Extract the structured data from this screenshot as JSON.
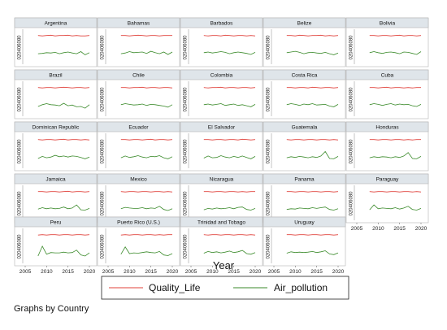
{
  "chart_data": {
    "type": "line",
    "layout": "small-multiples",
    "xlabel": "Year",
    "xlim": [
      2005,
      2020
    ],
    "xticks": [
      "2005",
      "2010",
      "2015",
      "2020"
    ],
    "ylim": [
      0,
      100
    ],
    "yticks": [
      "0",
      "20",
      "40",
      "60",
      "80"
    ],
    "years": [
      2008,
      2009,
      2010,
      2011,
      2012,
      2013,
      2014,
      2015,
      2016,
      2017,
      2018,
      2019,
      2020
    ],
    "legend": {
      "position": "bottom",
      "items": [
        {
          "label": "Quality_Life",
          "color": "#e0403a"
        },
        {
          "label": "Air_pollution",
          "color": "#3a8a2a"
        }
      ]
    },
    "note": "Graphs by Country",
    "panels": [
      {
        "country": "Argentina",
        "Quality_Life": [
          82,
          81,
          82,
          83,
          81,
          82,
          82,
          83,
          81,
          82,
          81,
          81,
          82
        ],
        "Air_pollution": [
          30,
          31,
          33,
          32,
          34,
          30,
          33,
          35,
          32,
          30,
          36,
          27,
          33
        ]
      },
      {
        "country": "Bahamas",
        "Quality_Life": [
          82,
          82,
          81,
          82,
          83,
          82,
          81,
          82,
          82,
          81,
          82,
          82,
          82
        ],
        "Air_pollution": [
          30,
          32,
          36,
          33,
          34,
          35,
          31,
          37,
          33,
          30,
          35,
          28,
          35
        ]
      },
      {
        "country": "Barbados",
        "Quality_Life": [
          82,
          81,
          82,
          82,
          81,
          83,
          82,
          81,
          82,
          82,
          81,
          82,
          81
        ],
        "Air_pollution": [
          33,
          35,
          32,
          34,
          36,
          34,
          30,
          33,
          35,
          33,
          31,
          28,
          34
        ]
      },
      {
        "country": "Belize",
        "Quality_Life": [
          82,
          82,
          81,
          83,
          82,
          81,
          82,
          82,
          83,
          81,
          82,
          81,
          82
        ],
        "Air_pollution": [
          33,
          35,
          37,
          34,
          30,
          33,
          34,
          32,
          31,
          34,
          30,
          27,
          32
        ]
      },
      {
        "country": "Bolivia",
        "Quality_Life": [
          82,
          82,
          81,
          82,
          82,
          81,
          82,
          83,
          81,
          82,
          82,
          81,
          82
        ],
        "Air_pollution": [
          33,
          36,
          33,
          31,
          34,
          35,
          33,
          30,
          35,
          34,
          31,
          28,
          36
        ]
      },
      {
        "country": "Brazil",
        "Quality_Life": [
          82,
          81,
          82,
          82,
          81,
          82,
          83,
          82,
          81,
          82,
          82,
          81,
          82
        ],
        "Air_pollution": [
          28,
          33,
          36,
          33,
          32,
          30,
          37,
          30,
          32,
          27,
          28,
          23,
          33
        ]
      },
      {
        "country": "Chile",
        "Quality_Life": [
          82,
          82,
          81,
          82,
          82,
          83,
          81,
          82,
          82,
          81,
          82,
          82,
          81
        ],
        "Air_pollution": [
          33,
          36,
          34,
          32,
          33,
          35,
          31,
          34,
          33,
          31,
          29,
          26,
          33
        ]
      },
      {
        "country": "Colombia",
        "Quality_Life": [
          82,
          81,
          82,
          82,
          83,
          81,
          82,
          82,
          81,
          82,
          82,
          81,
          82
        ],
        "Air_pollution": [
          33,
          35,
          32,
          34,
          36,
          31,
          33,
          35,
          31,
          33,
          30,
          27,
          34
        ]
      },
      {
        "country": "Costa Rica",
        "Quality_Life": [
          82,
          82,
          81,
          82,
          82,
          81,
          83,
          82,
          81,
          82,
          82,
          81,
          82
        ],
        "Air_pollution": [
          33,
          36,
          34,
          31,
          35,
          33,
          36,
          32,
          33,
          34,
          29,
          27,
          34
        ]
      },
      {
        "country": "Cuba",
        "Quality_Life": [
          82,
          82,
          81,
          82,
          83,
          81,
          82,
          82,
          81,
          82,
          81,
          82,
          82
        ],
        "Air_pollution": [
          33,
          36,
          34,
          31,
          34,
          36,
          32,
          35,
          33,
          34,
          30,
          28,
          34
        ]
      },
      {
        "country": "Dominican Republic",
        "Quality_Life": [
          82,
          81,
          82,
          82,
          81,
          82,
          83,
          81,
          82,
          82,
          81,
          82,
          81
        ],
        "Air_pollution": [
          28,
          34,
          30,
          32,
          37,
          33,
          35,
          32,
          35,
          34,
          31,
          27,
          32
        ]
      },
      {
        "country": "Ecuador",
        "Quality_Life": [
          82,
          82,
          81,
          82,
          82,
          81,
          82,
          83,
          81,
          82,
          82,
          81,
          82
        ],
        "Air_pollution": [
          30,
          35,
          31,
          33,
          36,
          32,
          30,
          34,
          33,
          36,
          30,
          27,
          33
        ]
      },
      {
        "country": "El Salvador",
        "Quality_Life": [
          82,
          82,
          81,
          82,
          82,
          81,
          82,
          82,
          81,
          83,
          82,
          81,
          82
        ],
        "Air_pollution": [
          29,
          35,
          30,
          31,
          36,
          32,
          30,
          34,
          31,
          35,
          31,
          27,
          34
        ]
      },
      {
        "country": "Guatemala",
        "Quality_Life": [
          82,
          81,
          82,
          82,
          81,
          82,
          82,
          81,
          82,
          82,
          81,
          82,
          81
        ],
        "Air_pollution": [
          30,
          33,
          31,
          34,
          32,
          30,
          33,
          31,
          35,
          48,
          28,
          27,
          34
        ]
      },
      {
        "country": "Honduras",
        "Quality_Life": [
          82,
          82,
          81,
          82,
          82,
          81,
          82,
          82,
          81,
          82,
          81,
          82,
          82
        ],
        "Air_pollution": [
          30,
          33,
          31,
          33,
          32,
          30,
          33,
          31,
          35,
          45,
          28,
          27,
          34
        ]
      },
      {
        "country": "Jamaica",
        "Quality_Life": [
          82,
          82,
          81,
          82,
          82,
          81,
          82,
          83,
          81,
          82,
          82,
          81,
          82
        ],
        "Air_pollution": [
          32,
          36,
          33,
          35,
          33,
          34,
          38,
          33,
          35,
          44,
          30,
          29,
          34
        ]
      },
      {
        "country": "Mexico",
        "Quality_Life": [
          82,
          81,
          82,
          82,
          81,
          82,
          82,
          81,
          82,
          82,
          81,
          82,
          81
        ],
        "Air_pollution": [
          33,
          37,
          35,
          34,
          34,
          36,
          33,
          35,
          34,
          40,
          31,
          28,
          33
        ]
      },
      {
        "country": "Nicaragua",
        "Quality_Life": [
          82,
          82,
          81,
          82,
          82,
          81,
          82,
          82,
          81,
          82,
          81,
          82,
          82
        ],
        "Air_pollution": [
          30,
          34,
          32,
          35,
          33,
          34,
          36,
          33,
          37,
          38,
          31,
          29,
          34
        ]
      },
      {
        "country": "Panama",
        "Quality_Life": [
          82,
          82,
          81,
          82,
          82,
          81,
          82,
          82,
          81,
          82,
          82,
          81,
          82
        ],
        "Air_pollution": [
          31,
          33,
          32,
          35,
          34,
          33,
          36,
          34,
          36,
          38,
          31,
          29,
          33
        ]
      },
      {
        "country": "Paraguay",
        "Quality_Life": [
          82,
          81,
          82,
          82,
          81,
          82,
          82,
          81,
          82,
          82,
          81,
          82,
          81
        ],
        "Air_pollution": [
          30,
          44,
          33,
          35,
          34,
          33,
          36,
          32,
          35,
          40,
          31,
          29,
          34
        ]
      },
      {
        "country": "Peru",
        "Quality_Life": [
          81,
          82,
          81,
          82,
          82,
          81,
          82,
          82,
          81,
          82,
          82,
          81,
          82
        ],
        "Air_pollution": [
          21,
          49,
          26,
          31,
          30,
          30,
          32,
          30,
          31,
          38,
          24,
          21,
          30
        ]
      },
      {
        "country": "Puerto Rico (U.S.)",
        "Quality_Life": [
          81,
          82,
          81,
          82,
          82,
          81,
          82,
          82,
          81,
          82,
          81,
          82,
          82
        ],
        "Air_pollution": [
          26,
          47,
          28,
          30,
          29,
          31,
          33,
          31,
          30,
          34,
          24,
          22,
          28
        ]
      },
      {
        "country": "Trinidad and Tobago",
        "Quality_Life": [
          82,
          81,
          82,
          82,
          81,
          82,
          82,
          81,
          82,
          82,
          81,
          82,
          81
        ],
        "Air_pollution": [
          29,
          34,
          31,
          33,
          30,
          32,
          35,
          31,
          33,
          37,
          28,
          26,
          31
        ]
      },
      {
        "country": "Uruguay",
        "Quality_Life": [
          82,
          82,
          81,
          82,
          82,
          81,
          82,
          82,
          81,
          82,
          82,
          81,
          82
        ],
        "Air_pollution": [
          29,
          33,
          31,
          32,
          31,
          32,
          34,
          31,
          33,
          36,
          27,
          25,
          30
        ]
      }
    ]
  }
}
